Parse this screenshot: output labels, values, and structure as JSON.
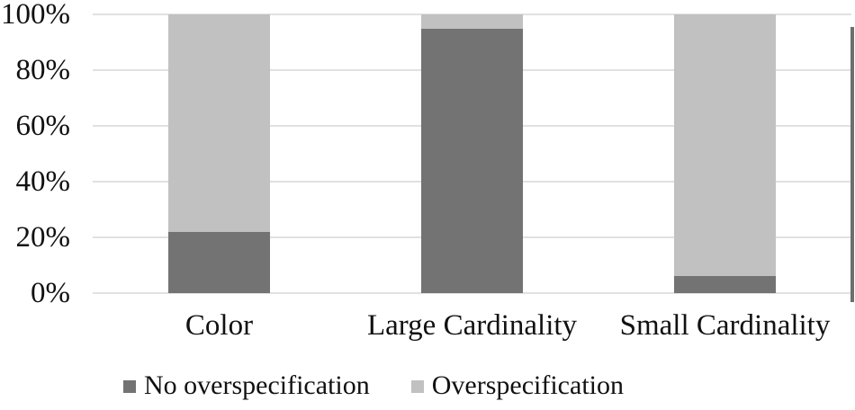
{
  "chart_data": {
    "type": "bar",
    "subtype": "stacked-100-percent",
    "title": "",
    "xlabel": "",
    "ylabel": "",
    "categories": [
      "Color",
      "Large Cardinality",
      "Small Cardinality"
    ],
    "series": [
      {
        "name": "No overspecification",
        "color": "#737373",
        "values": [
          22,
          95,
          6
        ]
      },
      {
        "name": "Overspecification",
        "color": "#c1c1c1",
        "values": [
          78,
          5,
          94
        ]
      }
    ],
    "ylim": [
      0,
      100
    ],
    "y_ticks": [
      {
        "value": 0,
        "label": "0%"
      },
      {
        "value": 20,
        "label": "20%"
      },
      {
        "value": 40,
        "label": "40%"
      },
      {
        "value": 60,
        "label": "60%"
      },
      {
        "value": 80,
        "label": "80%"
      },
      {
        "value": 100,
        "label": "100%"
      }
    ],
    "grid": "horizontal",
    "gridline_color": "#e1e1e1",
    "legend_position": "bottom",
    "background_color": "#ffffff",
    "text_color": "#111111"
  }
}
